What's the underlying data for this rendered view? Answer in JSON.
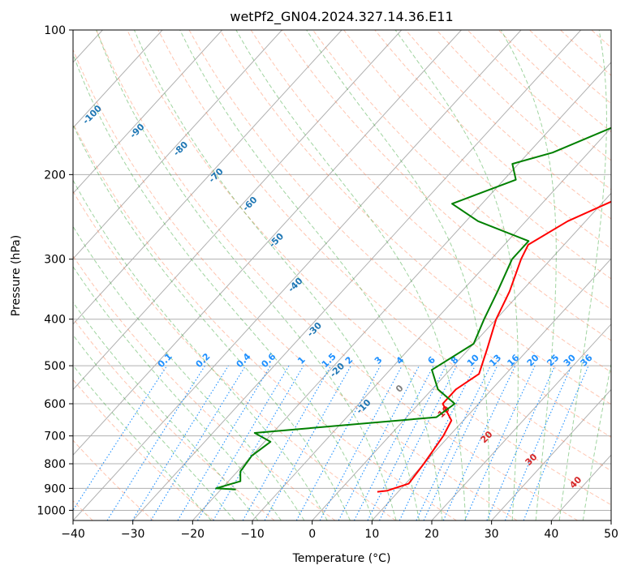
{
  "chart_data": {
    "type": "line",
    "title": "wetPf2_GN04.2024.327.14.36.E11",
    "xlabel": "Temperature (°C)",
    "ylabel": "Pressure (hPa)",
    "xlim": [
      -40,
      50
    ],
    "ylim": [
      1050,
      100
    ],
    "y_scale": "log",
    "grid": true,
    "x_ticks": [
      -40,
      -30,
      -20,
      -10,
      0,
      10,
      20,
      30,
      40,
      50
    ],
    "y_ticks": [
      100,
      200,
      300,
      400,
      500,
      600,
      700,
      800,
      900,
      1000
    ],
    "skew": true,
    "series": [
      {
        "role": "temperature",
        "color": "#ff0000",
        "points": [
          [
            13.0,
            100
          ],
          [
            9.5,
            130
          ],
          [
            9.0,
            160
          ],
          [
            8.5,
            185
          ],
          [
            5.0,
            210
          ],
          [
            -3.0,
            250
          ],
          [
            -6.0,
            280
          ],
          [
            -5.0,
            300
          ],
          [
            -2.0,
            350
          ],
          [
            0.0,
            400
          ],
          [
            3.0,
            460
          ],
          [
            5.5,
            520
          ],
          [
            4.0,
            560
          ],
          [
            4.0,
            600
          ],
          [
            8.0,
            650
          ],
          [
            9.0,
            700
          ],
          [
            10.0,
            800
          ],
          [
            10.5,
            880
          ],
          [
            8.0,
            910
          ],
          [
            6.5,
            915
          ]
        ]
      },
      {
        "role": "dewpoint",
        "color": "#008000",
        "points": [
          [
            1.0,
            100
          ],
          [
            -5.0,
            125
          ],
          [
            -10.0,
            160
          ],
          [
            -16.0,
            180
          ],
          [
            -21.0,
            190
          ],
          [
            -18.0,
            205
          ],
          [
            -25.0,
            230
          ],
          [
            -18.0,
            250
          ],
          [
            -6.5,
            275
          ],
          [
            -6.5,
            300
          ],
          [
            -4.0,
            350
          ],
          [
            -2.0,
            400
          ],
          [
            0.0,
            450
          ],
          [
            -3.0,
            510
          ],
          [
            1.0,
            560
          ],
          [
            6.0,
            600
          ],
          [
            5.0,
            640
          ],
          [
            -23.0,
            690
          ],
          [
            -19.0,
            720
          ],
          [
            -20.0,
            770
          ],
          [
            -19.5,
            830
          ],
          [
            -18.0,
            870
          ],
          [
            -21.0,
            900
          ],
          [
            -17.5,
            905
          ]
        ]
      }
    ],
    "dry_adiabat_labels": [
      "-100",
      "-90",
      "-80",
      "-70",
      "-60",
      "-50",
      "-40",
      "-30",
      "-20",
      "-10"
    ],
    "mixing_ratio_labels": [
      "0.1",
      "0.2",
      "0.4",
      "0.6",
      "1",
      "1.5",
      "2",
      "3",
      "4",
      "6",
      "8",
      "10",
      "13",
      "16",
      "20",
      "25",
      "30",
      "36"
    ],
    "moist_adiabat_labels": [
      "0",
      "10",
      "20",
      "30",
      "40"
    ],
    "colors": {
      "axes": "#000000",
      "grid": "#b0b0b0",
      "dry_adiabat": "#ff7f50",
      "moist_adiabat": "#2ca02c",
      "mixing_ratio": "#1e90ff",
      "dry_label": "#1f77b4",
      "moist_label_zero": "#808080",
      "moist_label": "#d62728"
    }
  }
}
